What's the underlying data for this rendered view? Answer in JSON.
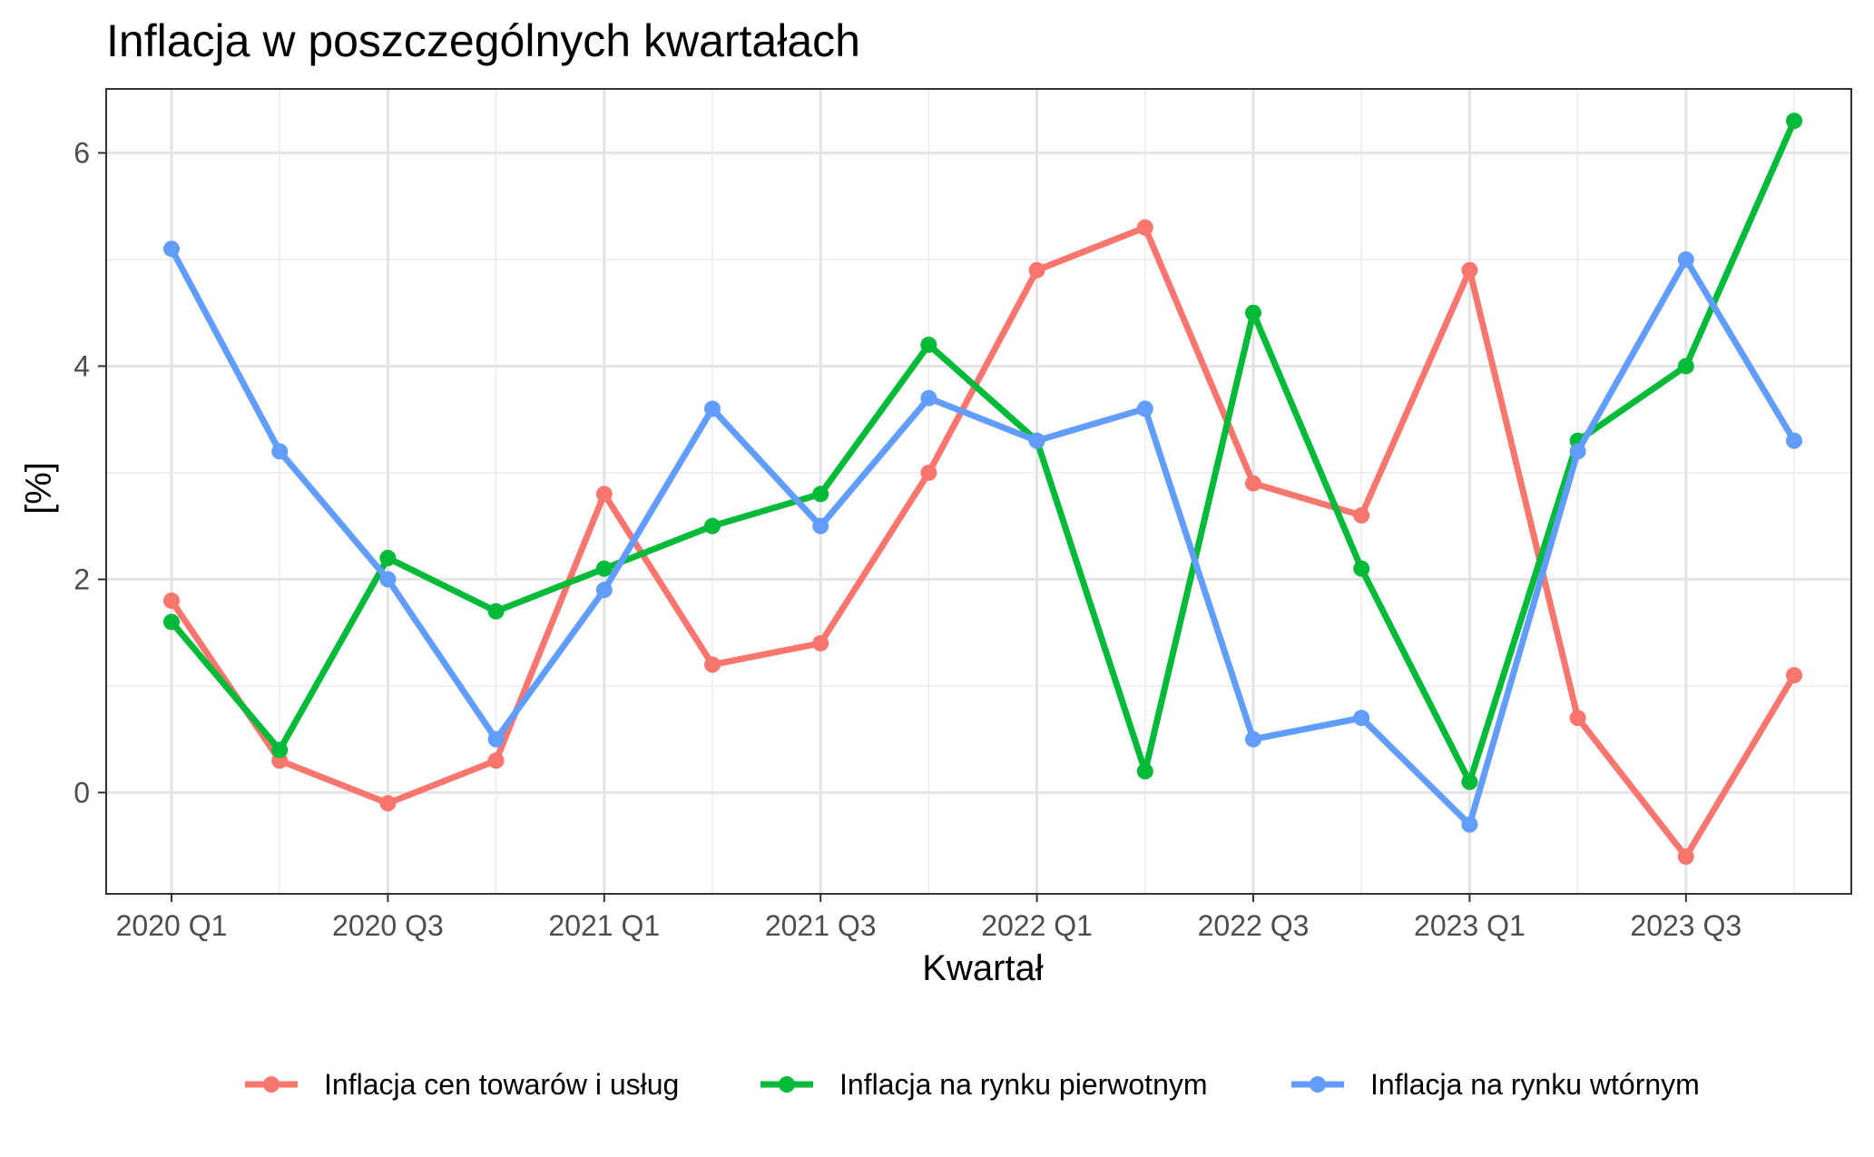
{
  "chart_data": {
    "type": "line",
    "title": "Inflacja w poszczególnych kwartałach",
    "xlabel": "Kwartał",
    "ylabel": "[%]",
    "x": [
      "2020 Q1",
      "2020 Q2",
      "2020 Q3",
      "2020 Q4",
      "2021 Q1",
      "2021 Q2",
      "2021 Q3",
      "2021 Q4",
      "2022 Q1",
      "2022 Q2",
      "2022 Q3",
      "2022 Q4",
      "2023 Q1",
      "2023 Q2",
      "2023 Q3",
      "2023 Q4"
    ],
    "x_tick_labels": [
      "2020 Q1",
      "2020 Q3",
      "2021 Q1",
      "2021 Q3",
      "2022 Q1",
      "2022 Q3",
      "2023 Q1",
      "2023 Q3"
    ],
    "y_ticks": [
      0,
      2,
      4,
      6
    ],
    "ylim": [
      -0.95,
      6.6
    ],
    "grid": true,
    "legend_position": "bottom",
    "series": [
      {
        "name": "Inflacja cen towarów i usług",
        "color": "#F8766D",
        "values": [
          1.8,
          0.3,
          -0.1,
          0.3,
          2.8,
          1.2,
          1.4,
          3.0,
          4.9,
          5.3,
          2.9,
          2.6,
          4.9,
          0.7,
          -0.6,
          1.1
        ]
      },
      {
        "name": "Inflacja na rynku pierwotnym",
        "color": "#00BA38",
        "values": [
          1.6,
          0.4,
          2.2,
          1.7,
          2.1,
          2.5,
          2.8,
          4.2,
          3.3,
          0.2,
          4.5,
          2.1,
          0.1,
          3.3,
          4.0,
          6.3
        ]
      },
      {
        "name": "Inflacja na rynku wtórnym",
        "color": "#619CFF",
        "values": [
          5.1,
          3.2,
          2.0,
          0.5,
          1.9,
          3.6,
          2.5,
          3.7,
          3.3,
          3.6,
          0.5,
          0.7,
          -0.3,
          3.2,
          5.0,
          3.3
        ]
      }
    ]
  }
}
